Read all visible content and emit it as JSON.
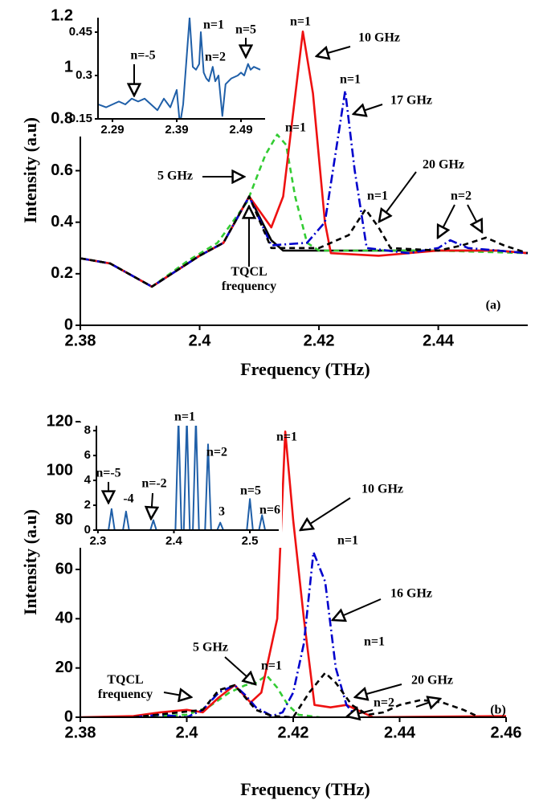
{
  "chart_data": [
    {
      "type": "line",
      "x_label": "Frequency (THz)",
      "y_label": "Intensity (a.u)",
      "xlim": [
        2.38,
        2.455
      ],
      "xticks": [
        2.38,
        2.4,
        2.42,
        2.44
      ],
      "ylim": [
        0,
        1.2
      ],
      "yticks": [
        0,
        0.2,
        0.4,
        0.6,
        0.8,
        1,
        1.2
      ],
      "series": [
        {
          "name": "TQCL frequency",
          "color": "#000000",
          "style": "solid",
          "x": [
            2.38,
            2.385,
            2.392,
            2.4,
            2.404,
            2.4083,
            2.412,
            2.414,
            2.42,
            2.43,
            2.44,
            2.45,
            2.455
          ],
          "values": [
            0.26,
            0.24,
            0.15,
            0.27,
            0.32,
            0.5,
            0.33,
            0.29,
            0.29,
            0.29,
            0.29,
            0.29,
            0.28
          ]
        },
        {
          "name": "5 GHz",
          "color": "#33cc33",
          "style": "dashed",
          "x": [
            2.38,
            2.385,
            2.392,
            2.398,
            2.403,
            2.408,
            2.411,
            2.413,
            2.4145,
            2.416,
            2.418,
            2.42,
            2.44,
            2.455
          ],
          "values": [
            0.26,
            0.24,
            0.15,
            0.25,
            0.32,
            0.48,
            0.66,
            0.74,
            0.7,
            0.5,
            0.32,
            0.29,
            0.29,
            0.28
          ]
        },
        {
          "name": "10 GHz",
          "color": "#ee1111",
          "style": "solid",
          "x": [
            2.38,
            2.385,
            2.392,
            2.4,
            2.404,
            2.4083,
            2.412,
            2.414,
            2.4173,
            2.419,
            2.421,
            2.422,
            2.43,
            2.44,
            2.45,
            2.455
          ],
          "values": [
            0.26,
            0.24,
            0.15,
            0.27,
            0.32,
            0.5,
            0.38,
            0.5,
            1.14,
            0.9,
            0.4,
            0.28,
            0.27,
            0.29,
            0.29,
            0.28
          ]
        },
        {
          "name": "17 GHz",
          "color": "#0000cc",
          "style": "dashdot",
          "x": [
            2.38,
            2.385,
            2.392,
            2.4,
            2.404,
            2.4083,
            2.412,
            2.418,
            2.421,
            2.4244,
            2.426,
            2.428,
            2.435,
            2.44,
            2.442,
            2.445,
            2.455
          ],
          "values": [
            0.26,
            0.24,
            0.15,
            0.27,
            0.32,
            0.5,
            0.31,
            0.32,
            0.4,
            0.91,
            0.6,
            0.3,
            0.28,
            0.3,
            0.33,
            0.3,
            0.28
          ]
        },
        {
          "name": "20 GHz",
          "color": "#000000",
          "style": "dashed",
          "x": [
            2.38,
            2.385,
            2.392,
            2.4,
            2.404,
            2.4083,
            2.412,
            2.42,
            2.425,
            2.4278,
            2.43,
            2.432,
            2.44,
            2.444,
            2.448,
            2.451,
            2.455
          ],
          "values": [
            0.26,
            0.24,
            0.15,
            0.27,
            0.32,
            0.5,
            0.3,
            0.3,
            0.35,
            0.45,
            0.38,
            0.3,
            0.29,
            0.31,
            0.34,
            0.31,
            0.28
          ]
        }
      ],
      "annotations": [
        "n=1",
        "n=1",
        "n=1",
        "n=1",
        "n=2",
        "(a)"
      ],
      "inset": {
        "type": "line",
        "xlim": [
          2.2675,
          2.5275
        ],
        "xticks": [
          2.29,
          2.39,
          2.49
        ],
        "ylim": [
          0.15,
          0.5
        ],
        "yticks": [
          0.15,
          0.3,
          0.45
        ],
        "series": [
          {
            "color": "#1f5fa8",
            "style": "solid",
            "x": [
              2.268,
              2.28,
              2.29,
              2.3,
              2.31,
              2.32,
              2.33,
              2.34,
              2.35,
              2.36,
              2.37,
              2.38,
              2.39,
              2.395,
              2.4,
              2.405,
              2.41,
              2.415,
              2.42,
              2.425,
              2.4275,
              2.432,
              2.436,
              2.44,
              2.446,
              2.45,
              2.455,
              2.461,
              2.466,
              2.475,
              2.485,
              2.49,
              2.495,
              2.501,
              2.505,
              2.51,
              2.52
            ],
            "values": [
              0.2,
              0.19,
              0.2,
              0.21,
              0.2,
              0.22,
              0.21,
              0.22,
              0.2,
              0.18,
              0.22,
              0.19,
              0.25,
              0.13,
              0.2,
              0.35,
              0.5,
              0.33,
              0.32,
              0.34,
              0.45,
              0.31,
              0.29,
              0.28,
              0.33,
              0.28,
              0.3,
              0.16,
              0.27,
              0.29,
              0.3,
              0.31,
              0.3,
              0.34,
              0.32,
              0.33,
              0.32
            ]
          }
        ],
        "annotations": [
          "n=-5",
          "n=1",
          "n=2",
          "n=5"
        ]
      }
    },
    {
      "type": "line",
      "x_label": "Frequency (THz)",
      "y_label": "Intensity (a.u)",
      "xlim": [
        2.38,
        2.46
      ],
      "xticks": [
        2.38,
        2.4,
        2.42,
        2.44,
        2.46
      ],
      "ylim": [
        0,
        120
      ],
      "yticks": [
        0,
        20,
        40,
        60,
        80,
        100,
        120
      ],
      "series": [
        {
          "name": "5 GHz",
          "color": "#33cc33",
          "style": "dashed",
          "x": [
            2.39,
            2.4,
            2.404,
            2.408,
            2.411,
            2.413,
            2.415,
            2.417,
            2.419,
            2.421,
            2.425
          ],
          "values": [
            0,
            1,
            4,
            10,
            13,
            14,
            17,
            12,
            5,
            1,
            0
          ]
        },
        {
          "name": "10 GHz",
          "color": "#ee1111",
          "style": "solid",
          "x": [
            2.38,
            2.39,
            2.395,
            2.4,
            2.403,
            2.406,
            2.409,
            2.412,
            2.414,
            2.417,
            2.4185,
            2.42,
            2.422,
            2.424,
            2.427,
            2.43,
            2.432,
            2.435,
            2.46
          ],
          "values": [
            0,
            0.5,
            2,
            3,
            2,
            8,
            13,
            6,
            10,
            40,
            116,
            80,
            40,
            5,
            4,
            5,
            3,
            0,
            0.5
          ]
        },
        {
          "name": "16 GHz",
          "color": "#0000cc",
          "style": "dashdot",
          "x": [
            2.39,
            2.395,
            2.4,
            2.403,
            2.406,
            2.409,
            2.411,
            2.413,
            2.416,
            2.418,
            2.42,
            2.422,
            2.4238,
            2.426,
            2.428,
            2.43,
            2.432
          ],
          "values": [
            0,
            1,
            0,
            3,
            10,
            13,
            9,
            4,
            0.5,
            2,
            10,
            30,
            67,
            55,
            20,
            5,
            0
          ]
        },
        {
          "name": "20 GHz",
          "color": "#000000",
          "style": "dashed",
          "x": [
            2.39,
            2.403,
            2.406,
            2.409,
            2.411,
            2.413,
            2.416,
            2.42,
            2.423,
            2.426,
            2.428,
            2.431,
            2.434,
            2.437,
            2.44,
            2.444,
            2.448,
            2.452,
            2.455
          ],
          "values": [
            0,
            3,
            11,
            13,
            8,
            3,
            0.5,
            0,
            10,
            18,
            14,
            5,
            1,
            2,
            5,
            7,
            6,
            3,
            0
          ]
        }
      ],
      "annotations": [
        "n=1",
        "n=1",
        "n=1",
        "n=1",
        "n=2",
        "TQCL frequency",
        "(b)"
      ],
      "inset": {
        "type": "line",
        "xlim": [
          2.298,
          2.538
        ],
        "xticks": [
          2.3,
          2.4,
          2.5
        ],
        "ylim": [
          0,
          8.4
        ],
        "yticks": [
          0,
          2,
          4,
          6,
          8
        ],
        "series": [
          {
            "color": "#1f5fa8",
            "style": "solid",
            "x": [
              2.3,
              2.314,
              2.318,
              2.322,
              2.333,
              2.337,
              2.341,
              2.369,
              2.373,
              2.377,
              2.402,
              2.406,
              2.41,
              2.413,
              2.417,
              2.421,
              2.425,
              2.429,
              2.433,
              2.441,
              2.445,
              2.449,
              2.457,
              2.461,
              2.465,
              2.496,
              2.5,
              2.504,
              2.512,
              2.516,
              2.52,
              2.53
            ],
            "values": [
              0,
              0,
              1.7,
              0,
              0,
              1.5,
              0,
              0,
              0.8,
              0,
              0,
              9,
              0,
              0,
              9,
              0,
              0,
              9,
              0,
              0,
              6.9,
              0,
              0,
              0.6,
              0,
              0,
              2.5,
              0,
              0,
              1.2,
              0,
              0
            ]
          }
        ],
        "annotations": [
          "n=-5",
          "-4",
          "n=-2",
          "n=1",
          "n=2",
          "3",
          "n=5",
          "n=6"
        ]
      }
    }
  ]
}
